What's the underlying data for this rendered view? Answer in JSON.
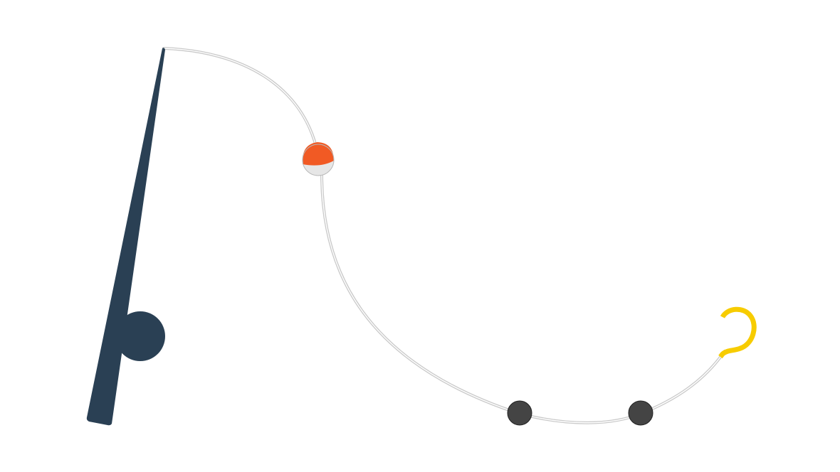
{
  "illustration": {
    "subject": "fishing-rod-with-line",
    "icons": [
      "fishing-rod-icon",
      "reel-icon",
      "fishing-line-icon",
      "bobber-icon",
      "sinker-icon",
      "hook-icon"
    ]
  },
  "colors": {
    "background": "#ffffff",
    "rod": "#2a4054",
    "reel": "#2a4054",
    "line_outer": "#c9c9c9",
    "line_inner": "#ffffff",
    "bobber_top": "#f15a24",
    "bobber_bottom": "#e6e6e6",
    "bobber_outline": "#b8b8b8",
    "sinker": "#444444",
    "sinker_outline": "#222222",
    "hook": "#f7cc00"
  }
}
